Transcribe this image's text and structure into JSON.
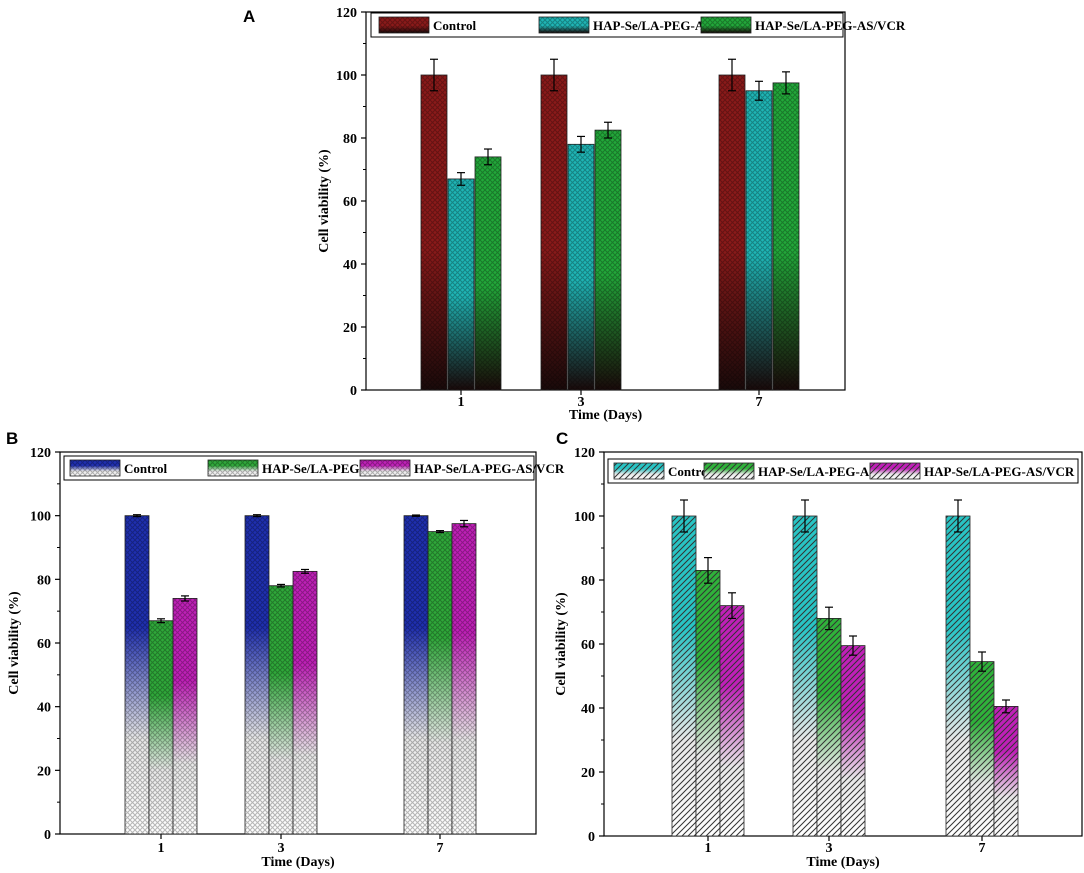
{
  "figure": {
    "panels": [
      {
        "letter": "A"
      },
      {
        "letter": "B"
      },
      {
        "letter": "C"
      }
    ]
  },
  "chart_data": [
    {
      "panel": "A",
      "type": "bar",
      "title": "",
      "xlabel": "Time (Days)",
      "ylabel": "Cell viability (%)",
      "ylim": [
        0,
        120
      ],
      "yticks": [
        0,
        20,
        40,
        60,
        80,
        100,
        120
      ],
      "categories": [
        "1",
        "3",
        "7"
      ],
      "series": [
        {
          "name": "Control",
          "values": [
            100,
            100,
            100
          ],
          "errors": [
            5,
            5,
            5
          ],
          "color": "#8b1a1a",
          "fill": "crosshatch-gradient-dark"
        },
        {
          "name": "HAP-Se/LA-PEG-AS",
          "values": [
            67,
            78,
            95
          ],
          "errors": [
            2,
            2.5,
            3
          ],
          "color": "#1fb5b5",
          "fill": "crosshatch-gradient-dark"
        },
        {
          "name": "HAP-Se/LA-PEG-AS/VCR",
          "values": [
            74,
            82.5,
            97.5
          ],
          "errors": [
            2.5,
            2.5,
            3.5
          ],
          "color": "#22a83a",
          "fill": "crosshatch-gradient-dark"
        }
      ],
      "legend": "top"
    },
    {
      "panel": "B",
      "type": "bar",
      "title": "",
      "xlabel": "Time (Days)",
      "ylabel": "Cell viability (%)",
      "ylim": [
        0,
        120
      ],
      "yticks": [
        0,
        20,
        40,
        60,
        80,
        100,
        120
      ],
      "categories": [
        "1",
        "3",
        "7"
      ],
      "series": [
        {
          "name": "Control",
          "values": [
            100,
            100,
            100
          ],
          "errors": [
            0.3,
            0.3,
            0.2
          ],
          "color": "#1f2fb0",
          "fill": "crosshatch-gradient-gray"
        },
        {
          "name": "HAP-Se/LA-PEG-AS",
          "values": [
            67,
            78,
            95
          ],
          "errors": [
            0.6,
            0.4,
            0.3
          ],
          "color": "#2fa83a",
          "fill": "crosshatch-gradient-gray"
        },
        {
          "name": "HAP-Se/LA-PEG-AS/VCR",
          "values": [
            74,
            82.5,
            97.5
          ],
          "errors": [
            0.8,
            0.6,
            1
          ],
          "color": "#c020b8",
          "fill": "crosshatch-gradient-gray"
        }
      ],
      "legend": "top"
    },
    {
      "panel": "C",
      "type": "bar",
      "title": "",
      "xlabel": "Time (Days)",
      "ylabel": "Cell viability (%)",
      "ylim": [
        0,
        120
      ],
      "yticks": [
        0,
        20,
        40,
        60,
        80,
        100,
        120
      ],
      "categories": [
        "1",
        "3",
        "7"
      ],
      "series": [
        {
          "name": "Control",
          "values": [
            100,
            100,
            100
          ],
          "errors": [
            5,
            5,
            5
          ],
          "color": "#28c4c4",
          "fill": "diagonal-gradient-gray"
        },
        {
          "name": "HAP-Se/LA-PEG-AS",
          "values": [
            83,
            68,
            54.5
          ],
          "errors": [
            4,
            3.5,
            3
          ],
          "color": "#2fb23a",
          "fill": "diagonal-gradient-gray"
        },
        {
          "name": "HAP-Se/LA-PEG-AS/VCR",
          "values": [
            72,
            59.5,
            40.5
          ],
          "errors": [
            4,
            3,
            2
          ],
          "color": "#c020b8",
          "fill": "diagonal-gradient-gray"
        }
      ],
      "legend": "top"
    }
  ]
}
